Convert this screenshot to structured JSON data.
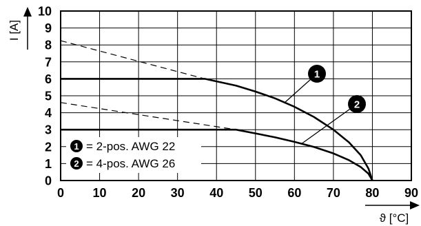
{
  "chart_data": {
    "type": "line",
    "xlabel": "ϑ [°C]",
    "ylabel": "I [A]",
    "xlim": [
      0,
      90
    ],
    "ylim": [
      0,
      10
    ],
    "x_ticks": [
      0,
      10,
      20,
      30,
      40,
      50,
      60,
      70,
      80,
      90
    ],
    "y_ticks": [
      0,
      1,
      2,
      3,
      4,
      5,
      6,
      7,
      8,
      9,
      10
    ],
    "grid": true,
    "series": [
      {
        "marker": "1",
        "name": "= 2-pos. AWG 22",
        "solid": [
          [
            0,
            6
          ],
          [
            37,
            6
          ],
          [
            45,
            5.6
          ],
          [
            50,
            5.25
          ],
          [
            55,
            4.85
          ],
          [
            60,
            4.35
          ],
          [
            65,
            3.75
          ],
          [
            70,
            3.0
          ],
          [
            74,
            2.25
          ],
          [
            77,
            1.5
          ],
          [
            79,
            0.7
          ],
          [
            80,
            0
          ]
        ],
        "derating": [
          [
            0,
            8.25
          ],
          [
            37,
            6
          ]
        ]
      },
      {
        "marker": "2",
        "name": "= 4-pos. AWG 26",
        "solid": [
          [
            0,
            3
          ],
          [
            45,
            3
          ],
          [
            50,
            2.78
          ],
          [
            55,
            2.55
          ],
          [
            60,
            2.28
          ],
          [
            65,
            1.98
          ],
          [
            70,
            1.6
          ],
          [
            74,
            1.2
          ],
          [
            77,
            0.8
          ],
          [
            79,
            0.4
          ],
          [
            80,
            0
          ]
        ],
        "derating": [
          [
            0,
            4.6
          ],
          [
            45,
            3
          ]
        ]
      }
    ]
  }
}
